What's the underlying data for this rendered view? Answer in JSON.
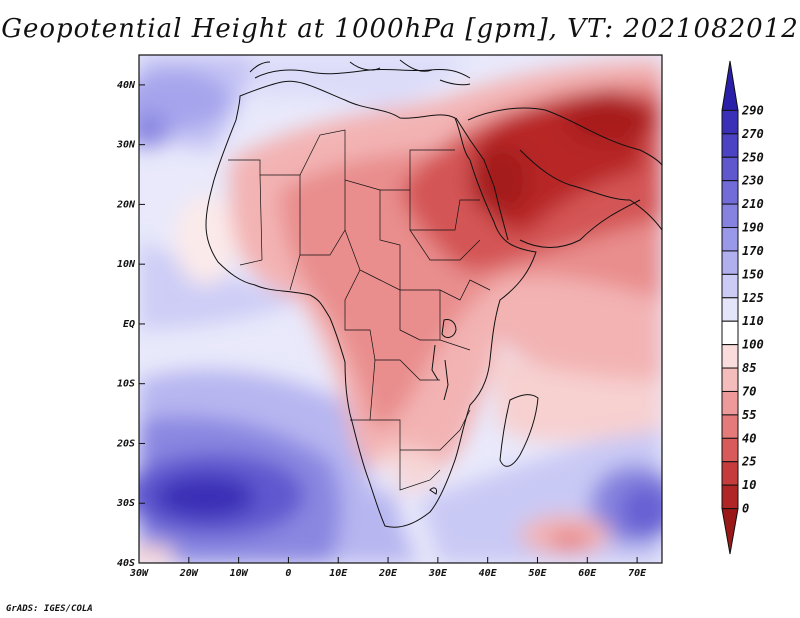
{
  "title": "Geopotential Height at 1000hPa [gpm], VT: 2021082012",
  "credit": "GrADS: IGES/COLA",
  "map": {
    "lon_range": [
      -30,
      75
    ],
    "lat_range": [
      -40,
      45
    ],
    "lat_ticks": [
      {
        "value": 40,
        "label": "40N"
      },
      {
        "value": 30,
        "label": "30N"
      },
      {
        "value": 20,
        "label": "20N"
      },
      {
        "value": 10,
        "label": "10N"
      },
      {
        "value": 0,
        "label": "EQ"
      },
      {
        "value": -10,
        "label": "10S"
      },
      {
        "value": -20,
        "label": "20S"
      },
      {
        "value": -30,
        "label": "30S"
      },
      {
        "value": -40,
        "label": "40S"
      }
    ],
    "lon_ticks": [
      {
        "value": -30,
        "label": "30W"
      },
      {
        "value": -20,
        "label": "20W"
      },
      {
        "value": -10,
        "label": "10W"
      },
      {
        "value": 0,
        "label": "0"
      },
      {
        "value": 10,
        "label": "10E"
      },
      {
        "value": 20,
        "label": "20E"
      },
      {
        "value": 30,
        "label": "30E"
      },
      {
        "value": 40,
        "label": "40E"
      },
      {
        "value": 50,
        "label": "50E"
      },
      {
        "value": 60,
        "label": "60E"
      },
      {
        "value": 70,
        "label": "70E"
      }
    ]
  },
  "colorbar": {
    "labels": [
      "290",
      "270",
      "250",
      "230",
      "210",
      "190",
      "170",
      "150",
      "125",
      "110",
      "100",
      "85",
      "70",
      "55",
      "40",
      "25",
      "10",
      "0"
    ],
    "colors": [
      "#2a1fa8",
      "#3a30b8",
      "#4c43c4",
      "#5e57ce",
      "#716cd8",
      "#8582e0",
      "#9a98e8",
      "#b1b0ef",
      "#cbcbf6",
      "#e4e4fa",
      "#ffffff",
      "#fbdcdc",
      "#f5bcbc",
      "#ee9a9a",
      "#e47a7a",
      "#d85a5a",
      "#c63c3c",
      "#b02626",
      "#9a1818"
    ]
  }
}
